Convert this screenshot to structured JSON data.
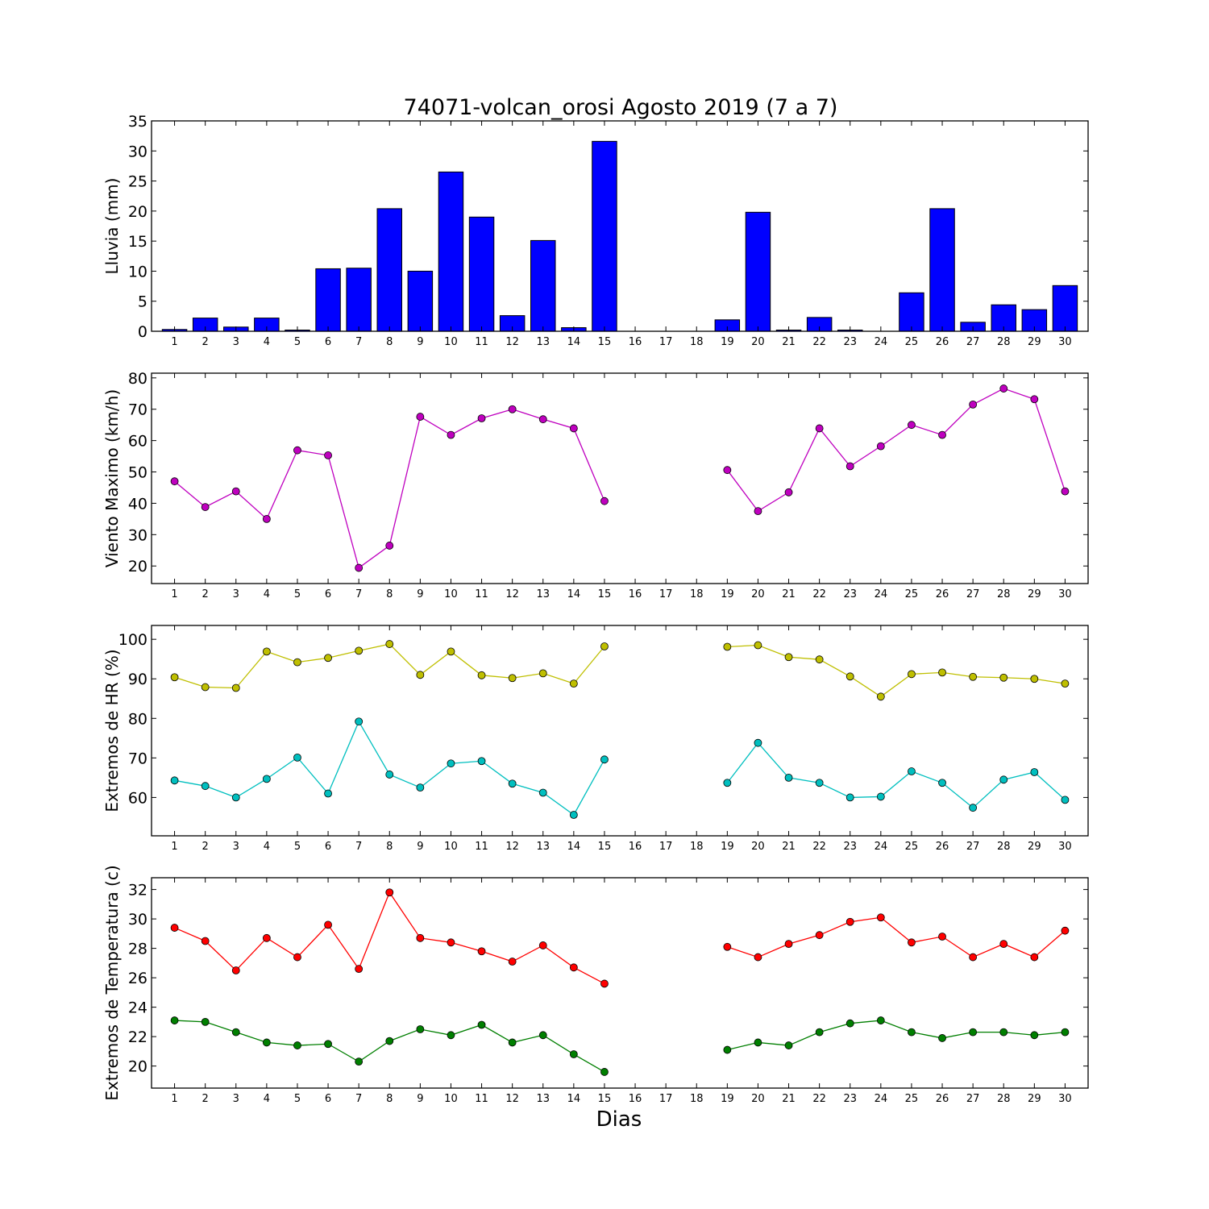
{
  "title": "74071-volcan_orosi Agosto 2019  (7 a 7)",
  "xlabel": "Dias",
  "days": [
    1,
    2,
    3,
    4,
    5,
    6,
    7,
    8,
    9,
    10,
    11,
    12,
    13,
    14,
    15,
    16,
    17,
    18,
    19,
    20,
    21,
    22,
    23,
    24,
    25,
    26,
    27,
    28,
    29,
    30
  ],
  "chart_data": [
    {
      "type": "bar",
      "ylabel": "Lluvia (mm)",
      "ylim": [
        0,
        35
      ],
      "yticks": [
        0,
        5,
        10,
        15,
        20,
        25,
        30,
        35
      ],
      "color": "#0000ff",
      "series": [
        {
          "values": [
            0.3,
            2.2,
            0.7,
            2.2,
            0.2,
            10.4,
            10.5,
            20.4,
            10.0,
            26.5,
            19.0,
            2.6,
            15.1,
            0.6,
            31.6,
            null,
            null,
            null,
            1.9,
            19.8,
            0.2,
            2.3,
            0.2,
            0,
            6.4,
            20.4,
            1.5,
            4.4,
            3.6,
            7.6
          ]
        }
      ]
    },
    {
      "type": "line",
      "ylabel": "Viento Maximo (km/h)",
      "ylim": [
        14.4,
        81.5
      ],
      "yticks": [
        20,
        30,
        40,
        50,
        60,
        70,
        80
      ],
      "series": [
        {
          "color": "#bf00bf",
          "values": [
            47.0,
            38.8,
            43.8,
            35.0,
            56.9,
            55.3,
            19.4,
            26.5,
            67.6,
            61.8,
            67.1,
            70.0,
            66.8,
            63.9,
            40.7,
            null,
            null,
            null,
            50.6,
            37.5,
            43.5,
            63.9,
            51.8,
            58.2,
            65.0,
            61.8,
            71.5,
            76.6,
            73.2,
            43.8
          ]
        }
      ]
    },
    {
      "type": "line",
      "ylabel": "Extremos de HR (%)",
      "ylim": [
        50.3,
        103.5
      ],
      "yticks": [
        60,
        70,
        80,
        90,
        100
      ],
      "series": [
        {
          "color": "#bfbf00",
          "values": [
            90.4,
            87.9,
            87.7,
            96.9,
            94.2,
            95.3,
            97.1,
            98.8,
            91.0,
            96.9,
            90.9,
            90.2,
            91.4,
            88.8,
            98.2,
            null,
            null,
            null,
            98.1,
            98.5,
            95.5,
            94.9,
            90.6,
            85.5,
            91.2,
            91.6,
            90.5,
            90.3,
            90.0,
            88.8
          ]
        },
        {
          "color": "#00bfbf",
          "values": [
            64.3,
            62.9,
            60.0,
            64.7,
            70.1,
            61.0,
            79.2,
            65.8,
            62.5,
            68.6,
            69.2,
            63.5,
            61.2,
            55.6,
            69.6,
            null,
            null,
            null,
            63.7,
            73.8,
            65.0,
            63.7,
            60.0,
            60.2,
            66.6,
            63.7,
            57.4,
            64.5,
            66.4,
            59.4
          ]
        }
      ]
    },
    {
      "type": "line",
      "ylabel": "Extremos de Temperatura (c)",
      "ylim": [
        18.5,
        32.8
      ],
      "yticks": [
        20,
        22,
        24,
        26,
        28,
        30,
        32
      ],
      "series": [
        {
          "color": "#ff0000",
          "values": [
            29.4,
            28.5,
            26.5,
            28.7,
            27.4,
            29.6,
            26.6,
            31.8,
            28.7,
            28.4,
            27.8,
            27.1,
            28.2,
            26.7,
            25.6,
            null,
            null,
            null,
            28.1,
            27.4,
            28.3,
            28.9,
            29.8,
            30.1,
            28.4,
            28.8,
            27.4,
            28.3,
            27.4,
            29.2
          ]
        },
        {
          "color": "#007f00",
          "values": [
            23.1,
            23.0,
            22.3,
            21.6,
            21.4,
            21.5,
            20.3,
            21.7,
            22.5,
            22.1,
            22.8,
            21.6,
            22.1,
            20.8,
            19.6,
            null,
            null,
            null,
            21.1,
            21.6,
            21.4,
            22.3,
            22.9,
            23.1,
            22.3,
            21.9,
            22.3,
            22.3,
            22.1,
            22.3
          ]
        }
      ]
    }
  ]
}
